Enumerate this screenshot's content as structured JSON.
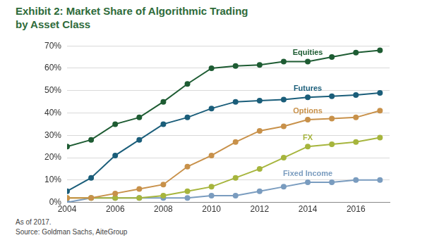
{
  "chart_data": {
    "type": "line",
    "title": [
      "Exhibit 2: Market Share of Algorithmic Trading",
      "by Asset Class"
    ],
    "notes": [
      "As of 2017.",
      "Source: Goldman Sachs, AiteGroup"
    ],
    "x": [
      2004,
      2005,
      2006,
      2007,
      2008,
      2009,
      2010,
      2011,
      2012,
      2013,
      2014,
      2015,
      2016,
      2017
    ],
    "series": [
      {
        "name": "Equities",
        "color": "#1e5c33",
        "values": [
          25,
          28,
          35,
          38,
          45,
          53,
          60,
          61,
          61.5,
          63,
          63,
          65,
          67,
          68
        ]
      },
      {
        "name": "Futures",
        "color": "#1b5e7a",
        "values": [
          5,
          11,
          21,
          28,
          35,
          38,
          42,
          45,
          45.5,
          46,
          47,
          47.5,
          48,
          49
        ]
      },
      {
        "name": "Options",
        "color": "#c8914a",
        "values": [
          2,
          2,
          4,
          6,
          8,
          16,
          21,
          27,
          32,
          34,
          37,
          37.5,
          38,
          41
        ]
      },
      {
        "name": "FX",
        "color": "#a6b53d",
        "values": [
          2,
          2,
          2,
          2,
          3,
          5,
          7,
          11,
          15,
          20,
          25,
          26,
          27,
          29
        ]
      },
      {
        "name": "Fixed Income",
        "color": "#7a9cbf",
        "values": [
          0,
          2,
          2,
          2,
          2,
          2,
          3,
          3,
          5,
          7,
          9,
          9,
          10,
          10
        ]
      }
    ],
    "xlim": [
      2004,
      2017.4
    ],
    "xticks": [
      2004,
      2006,
      2008,
      2010,
      2012,
      2014,
      2016
    ],
    "ylim": [
      0,
      70
    ],
    "yticks": [
      {
        "value": 0,
        "label": "0%"
      },
      {
        "value": 10,
        "label": "10%"
      },
      {
        "value": 20,
        "label": "20%"
      },
      {
        "value": 30,
        "label": "30%"
      },
      {
        "value": 40,
        "label": "40%"
      },
      {
        "value": 50,
        "label": "50%"
      },
      {
        "value": 60,
        "label": "60%"
      },
      {
        "value": 70,
        "label": "70%"
      }
    ],
    "grid": true,
    "marker": "circle"
  }
}
